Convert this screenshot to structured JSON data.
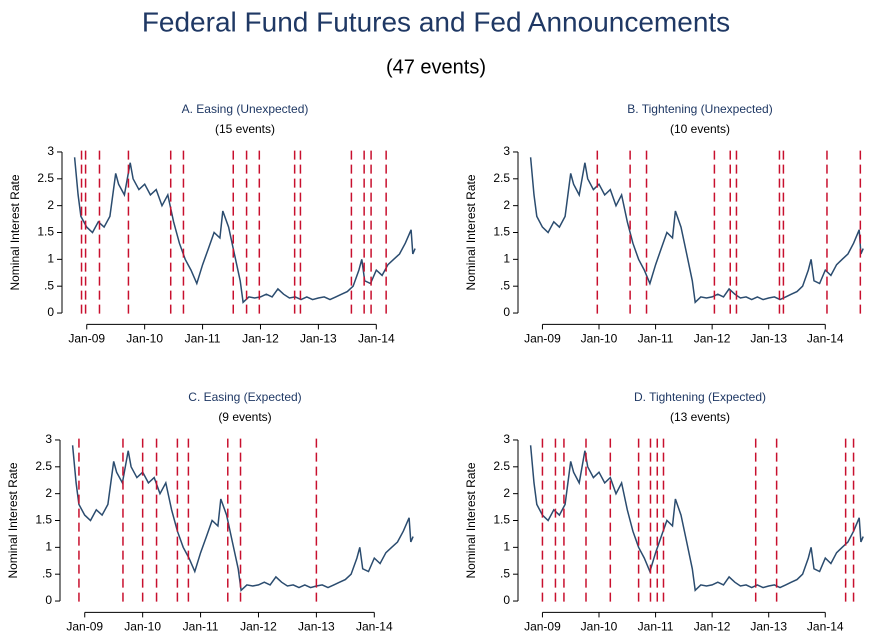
{
  "title": "Federal Fund Futures and Fed Announcements",
  "subtitle": "(47 events)",
  "chart_data": [
    {
      "type": "line",
      "title": "A. Easing (Unexpected)",
      "subtitle": "(15 events)",
      "ylabel": "Nominal Interest Rate",
      "x": [
        2008.79,
        2008.85,
        2008.9,
        2009.0,
        2009.1,
        2009.2,
        2009.3,
        2009.4,
        2009.5,
        2009.55,
        2009.65,
        2009.75,
        2009.8,
        2009.9,
        2010.0,
        2010.1,
        2010.2,
        2010.3,
        2010.4,
        2010.5,
        2010.6,
        2010.7,
        2010.8,
        2010.9,
        2011.0,
        2011.1,
        2011.2,
        2011.3,
        2011.35,
        2011.45,
        2011.55,
        2011.65,
        2011.7,
        2011.8,
        2011.9,
        2012.0,
        2012.1,
        2012.2,
        2012.3,
        2012.4,
        2012.5,
        2012.6,
        2012.7,
        2012.8,
        2012.9,
        2013.0,
        2013.1,
        2013.2,
        2013.3,
        2013.4,
        2013.5,
        2013.6,
        2013.7,
        2013.75,
        2013.8,
        2013.9,
        2014.0,
        2014.1,
        2014.2,
        2014.3,
        2014.4,
        2014.5,
        2014.6,
        2014.63,
        2014.67
      ],
      "series": [
        {
          "color": "#2b4c6f",
          "values": [
            2.9,
            2.2,
            1.8,
            1.6,
            1.5,
            1.7,
            1.6,
            1.8,
            2.6,
            2.4,
            2.2,
            2.8,
            2.5,
            2.3,
            2.4,
            2.2,
            2.3,
            2.0,
            2.2,
            1.7,
            1.3,
            1.0,
            0.8,
            0.55,
            0.9,
            1.2,
            1.5,
            1.4,
            1.9,
            1.6,
            1.1,
            0.6,
            0.2,
            0.3,
            0.28,
            0.3,
            0.35,
            0.3,
            0.45,
            0.35,
            0.28,
            0.3,
            0.25,
            0.3,
            0.25,
            0.28,
            0.3,
            0.25,
            0.3,
            0.35,
            0.4,
            0.5,
            0.8,
            1.0,
            0.6,
            0.55,
            0.8,
            0.7,
            0.9,
            1.0,
            1.1,
            1.3,
            1.55,
            1.1,
            1.2
          ]
        }
      ],
      "events": [
        2008.91,
        2008.98,
        2009.22,
        2009.72,
        2010.45,
        2010.67,
        2011.53,
        2011.76,
        2011.98,
        2012.59,
        2012.69,
        2013.57,
        2013.79,
        2013.91,
        2014.17
      ],
      "event_color": "#c8102e",
      "xlim": [
        2008.78,
        2014.72
      ],
      "ylim": [
        -0.1,
        3.1
      ],
      "xticks": [
        {
          "value": 2009,
          "label": "Jan-09"
        },
        {
          "value": 2010,
          "label": "Jan-10"
        },
        {
          "value": 2011,
          "label": "Jan-11"
        },
        {
          "value": 2012,
          "label": "Jan-12"
        },
        {
          "value": 2013,
          "label": "Jan-13"
        },
        {
          "value": 2014,
          "label": "Jan-14"
        }
      ],
      "yticks": [
        0,
        {
          "value": 0.5,
          "label": ".5"
        },
        1,
        1.5,
        2,
        2.5,
        3
      ]
    },
    {
      "type": "line",
      "title": "B. Tightening (Unexpected)",
      "subtitle": "(10 events)",
      "ylabel": "Nominal Interest Rate",
      "x": [
        2008.79,
        2008.85,
        2008.9,
        2009.0,
        2009.1,
        2009.2,
        2009.3,
        2009.4,
        2009.5,
        2009.55,
        2009.65,
        2009.75,
        2009.8,
        2009.9,
        2010.0,
        2010.1,
        2010.2,
        2010.3,
        2010.4,
        2010.5,
        2010.6,
        2010.7,
        2010.8,
        2010.9,
        2011.0,
        2011.1,
        2011.2,
        2011.3,
        2011.35,
        2011.45,
        2011.55,
        2011.65,
        2011.7,
        2011.8,
        2011.9,
        2012.0,
        2012.1,
        2012.2,
        2012.3,
        2012.4,
        2012.5,
        2012.6,
        2012.7,
        2012.8,
        2012.9,
        2013.0,
        2013.1,
        2013.2,
        2013.3,
        2013.4,
        2013.5,
        2013.6,
        2013.7,
        2013.75,
        2013.8,
        2013.9,
        2014.0,
        2014.1,
        2014.2,
        2014.3,
        2014.4,
        2014.5,
        2014.6,
        2014.63,
        2014.67
      ],
      "series": [
        {
          "color": "#2b4c6f",
          "values": [
            2.9,
            2.2,
            1.8,
            1.6,
            1.5,
            1.7,
            1.6,
            1.8,
            2.6,
            2.4,
            2.2,
            2.8,
            2.5,
            2.3,
            2.4,
            2.2,
            2.3,
            2.0,
            2.2,
            1.7,
            1.3,
            1.0,
            0.8,
            0.55,
            0.9,
            1.2,
            1.5,
            1.4,
            1.9,
            1.6,
            1.1,
            0.6,
            0.2,
            0.3,
            0.28,
            0.3,
            0.35,
            0.3,
            0.45,
            0.35,
            0.28,
            0.3,
            0.25,
            0.3,
            0.25,
            0.28,
            0.3,
            0.25,
            0.3,
            0.35,
            0.4,
            0.5,
            0.8,
            1.0,
            0.6,
            0.55,
            0.8,
            0.7,
            0.9,
            1.0,
            1.1,
            1.3,
            1.55,
            1.1,
            1.2
          ]
        }
      ],
      "events": [
        2009.97,
        2010.55,
        2010.84,
        2012.04,
        2012.32,
        2012.43,
        2013.19,
        2013.26,
        2014.03,
        2014.62
      ],
      "event_color": "#c8102e",
      "xlim": [
        2008.78,
        2014.72
      ],
      "ylim": [
        -0.1,
        3.1
      ],
      "xticks": [
        {
          "value": 2009,
          "label": "Jan-09"
        },
        {
          "value": 2010,
          "label": "Jan-10"
        },
        {
          "value": 2011,
          "label": "Jan-11"
        },
        {
          "value": 2012,
          "label": "Jan-12"
        },
        {
          "value": 2013,
          "label": "Jan-13"
        },
        {
          "value": 2014,
          "label": "Jan-14"
        }
      ],
      "yticks": [
        0,
        {
          "value": 0.5,
          "label": ".5"
        },
        1,
        1.5,
        2,
        2.5,
        3
      ]
    },
    {
      "type": "line",
      "title": "C. Easing (Expected)",
      "subtitle": "(9 events)",
      "ylabel": "Nominal Interest Rate",
      "x": [
        2008.79,
        2008.85,
        2008.9,
        2009.0,
        2009.1,
        2009.2,
        2009.3,
        2009.4,
        2009.5,
        2009.55,
        2009.65,
        2009.75,
        2009.8,
        2009.9,
        2010.0,
        2010.1,
        2010.2,
        2010.3,
        2010.4,
        2010.5,
        2010.6,
        2010.7,
        2010.8,
        2010.9,
        2011.0,
        2011.1,
        2011.2,
        2011.3,
        2011.35,
        2011.45,
        2011.55,
        2011.65,
        2011.7,
        2011.8,
        2011.9,
        2012.0,
        2012.1,
        2012.2,
        2012.3,
        2012.4,
        2012.5,
        2012.6,
        2012.7,
        2012.8,
        2012.9,
        2013.0,
        2013.1,
        2013.2,
        2013.3,
        2013.4,
        2013.5,
        2013.6,
        2013.7,
        2013.75,
        2013.8,
        2013.9,
        2014.0,
        2014.1,
        2014.2,
        2014.3,
        2014.4,
        2014.5,
        2014.6,
        2014.63,
        2014.67
      ],
      "series": [
        {
          "color": "#2b4c6f",
          "values": [
            2.9,
            2.2,
            1.8,
            1.6,
            1.5,
            1.7,
            1.6,
            1.8,
            2.6,
            2.4,
            2.2,
            2.8,
            2.5,
            2.3,
            2.4,
            2.2,
            2.3,
            2.0,
            2.2,
            1.7,
            1.3,
            1.0,
            0.8,
            0.55,
            0.9,
            1.2,
            1.5,
            1.4,
            1.9,
            1.6,
            1.1,
            0.6,
            0.2,
            0.3,
            0.28,
            0.3,
            0.35,
            0.3,
            0.45,
            0.35,
            0.28,
            0.3,
            0.25,
            0.3,
            0.25,
            0.28,
            0.3,
            0.25,
            0.3,
            0.35,
            0.4,
            0.5,
            0.8,
            1.0,
            0.6,
            0.55,
            0.8,
            0.7,
            0.9,
            1.0,
            1.1,
            1.3,
            1.55,
            1.1,
            1.2
          ]
        }
      ],
      "events": [
        2008.9,
        2009.66,
        2010.0,
        2010.24,
        2010.6,
        2010.79,
        2011.47,
        2011.69,
        2013.0
      ],
      "event_color": "#c8102e",
      "xlim": [
        2008.78,
        2014.72
      ],
      "ylim": [
        -0.1,
        3.1
      ],
      "xticks": [
        {
          "value": 2009,
          "label": "Jan-09"
        },
        {
          "value": 2010,
          "label": "Jan-10"
        },
        {
          "value": 2011,
          "label": "Jan-11"
        },
        {
          "value": 2012,
          "label": "Jan-12"
        },
        {
          "value": 2013,
          "label": "Jan-13"
        },
        {
          "value": 2014,
          "label": "Jan-14"
        }
      ],
      "yticks": [
        0,
        {
          "value": 0.5,
          "label": ".5"
        },
        1,
        1.5,
        2,
        2.5,
        3
      ]
    },
    {
      "type": "line",
      "title": "D. Tightening (Expected)",
      "subtitle": "(13 events)",
      "ylabel": "Nominal Interest Rate",
      "x": [
        2008.79,
        2008.85,
        2008.9,
        2009.0,
        2009.1,
        2009.2,
        2009.3,
        2009.4,
        2009.5,
        2009.55,
        2009.65,
        2009.75,
        2009.8,
        2009.9,
        2010.0,
        2010.1,
        2010.2,
        2010.3,
        2010.4,
        2010.5,
        2010.6,
        2010.7,
        2010.8,
        2010.9,
        2011.0,
        2011.1,
        2011.2,
        2011.3,
        2011.35,
        2011.45,
        2011.55,
        2011.65,
        2011.7,
        2011.8,
        2011.9,
        2012.0,
        2012.1,
        2012.2,
        2012.3,
        2012.4,
        2012.5,
        2012.6,
        2012.7,
        2012.8,
        2012.9,
        2013.0,
        2013.1,
        2013.2,
        2013.3,
        2013.4,
        2013.5,
        2013.6,
        2013.7,
        2013.75,
        2013.8,
        2013.9,
        2014.0,
        2014.1,
        2014.2,
        2014.3,
        2014.4,
        2014.5,
        2014.6,
        2014.63,
        2014.67
      ],
      "series": [
        {
          "color": "#2b4c6f",
          "values": [
            2.9,
            2.2,
            1.8,
            1.6,
            1.5,
            1.7,
            1.6,
            1.8,
            2.6,
            2.4,
            2.2,
            2.8,
            2.5,
            2.3,
            2.4,
            2.2,
            2.3,
            2.0,
            2.2,
            1.7,
            1.3,
            1.0,
            0.8,
            0.55,
            0.9,
            1.2,
            1.5,
            1.4,
            1.9,
            1.6,
            1.1,
            0.6,
            0.2,
            0.3,
            0.28,
            0.3,
            0.35,
            0.3,
            0.45,
            0.35,
            0.28,
            0.3,
            0.25,
            0.3,
            0.25,
            0.28,
            0.3,
            0.25,
            0.3,
            0.35,
            0.4,
            0.5,
            0.8,
            1.0,
            0.6,
            0.55,
            0.8,
            0.7,
            0.9,
            1.0,
            1.1,
            1.3,
            1.55,
            1.1,
            1.2
          ]
        }
      ],
      "events": [
        2009.0,
        2009.23,
        2009.38,
        2009.77,
        2010.2,
        2010.7,
        2010.91,
        2011.03,
        2011.14,
        2012.77,
        2013.14,
        2014.36,
        2014.5
      ],
      "event_color": "#c8102e",
      "xlim": [
        2008.78,
        2014.72
      ],
      "ylim": [
        -0.1,
        3.1
      ],
      "xticks": [
        {
          "value": 2009,
          "label": "Jan-09"
        },
        {
          "value": 2010,
          "label": "Jan-10"
        },
        {
          "value": 2011,
          "label": "Jan-11"
        },
        {
          "value": 2012,
          "label": "Jan-12"
        },
        {
          "value": 2013,
          "label": "Jan-13"
        },
        {
          "value": 2014,
          "label": "Jan-14"
        }
      ],
      "yticks": [
        0,
        {
          "value": 0.5,
          "label": ".5"
        },
        1,
        1.5,
        2,
        2.5,
        3
      ]
    }
  ]
}
